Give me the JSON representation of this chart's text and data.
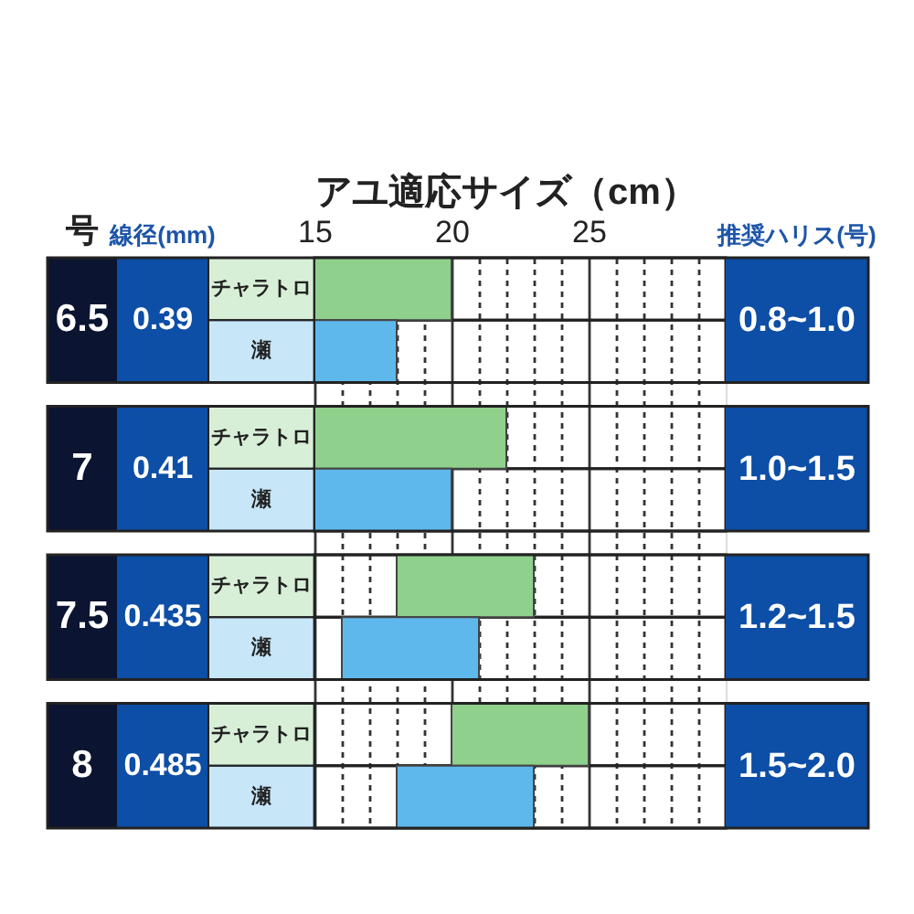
{
  "chart_data": {
    "type": "bar",
    "orientation": "horizontal",
    "xlabel": "アユ適応サイズ（cm）",
    "ylabel": "号",
    "y2label": "推奨ハリス(号)",
    "categories": [
      "6.5",
      "7",
      "7.5",
      "8"
    ],
    "y2_categories": [
      "0.8~1.0",
      "1.0~1.5",
      "1.2~1.5",
      "1.5~2.0"
    ],
    "series": [
      {
        "name": "チャラトロ",
        "color": "#8fd08c",
        "values": [
          5,
          7,
          5,
          5
        ],
        "base": [
          15,
          15,
          18,
          20
        ]
      },
      {
        "name": "瀬",
        "color": "#5fb8ec",
        "values": [
          3,
          5,
          5,
          5
        ],
        "base": [
          15,
          15,
          16,
          18
        ]
      }
    ],
    "xlim": [
      15,
      30
    ],
    "xticks": [
      15,
      {
        "value": 16,
        "label": null
      },
      {
        "value": 17,
        "label": null
      },
      {
        "value": 18,
        "label": null
      },
      {
        "value": 19,
        "label": null
      },
      20,
      {
        "value": 21,
        "label": null
      },
      {
        "value": 22,
        "label": null
      },
      {
        "value": 23,
        "label": null
      },
      {
        "value": 24,
        "label": null
      },
      25,
      {
        "value": 26,
        "label": null
      },
      {
        "value": 27,
        "label": null
      },
      {
        "value": 28,
        "label": null
      },
      {
        "value": 29,
        "label": null
      }
    ],
    "grid": "x",
    "annotations": [
      "線径(mm)",
      "0.39",
      "0.41",
      "0.435",
      "0.485"
    ]
  }
}
